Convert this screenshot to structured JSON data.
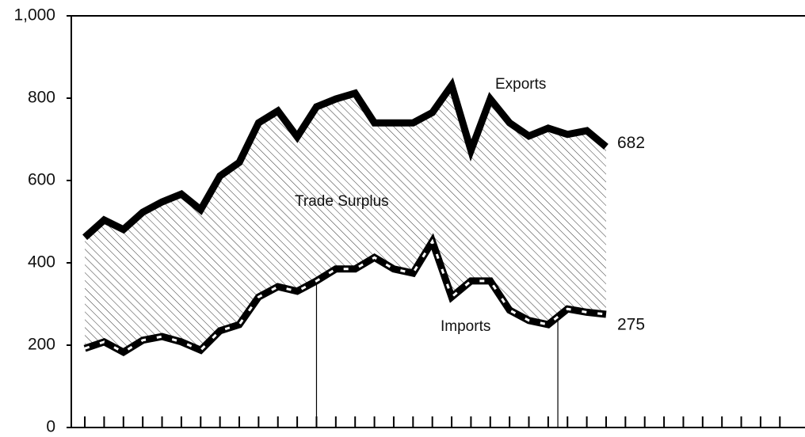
{
  "chart_data": {
    "type": "line",
    "x": [
      0,
      1,
      2,
      3,
      4,
      5,
      6,
      7,
      8,
      9,
      10,
      11,
      12,
      13,
      14,
      15,
      16,
      17,
      18,
      19,
      20,
      21,
      22,
      23,
      24,
      25,
      26,
      27
    ],
    "series": [
      {
        "name": "Exports",
        "color": "#000000",
        "values": [
          462,
          504,
          481,
          523,
          548,
          567,
          529,
          611,
          644,
          740,
          769,
          706,
          779,
          798,
          812,
          740,
          740,
          740,
          765,
          831,
          673,
          798,
          740,
          708,
          727,
          712,
          721,
          682
        ]
      },
      {
        "name": "Imports",
        "color": "#000000",
        "values": [
          192,
          208,
          183,
          212,
          221,
          208,
          188,
          235,
          250,
          317,
          342,
          331,
          356,
          385,
          385,
          413,
          385,
          375,
          452,
          317,
          356,
          356,
          285,
          260,
          250,
          288,
          280,
          275
        ]
      }
    ],
    "annotations": [
      "Trade Surplus"
    ],
    "vlines": [
      12,
      24.5
    ],
    "xlim": [
      -0.7,
      36.85
    ],
    "xticks": [
      0,
      1,
      2,
      3,
      4,
      5,
      6,
      7,
      8,
      9,
      10,
      11,
      12,
      13,
      14,
      15,
      16,
      17,
      18,
      19,
      20,
      21,
      22,
      23,
      24,
      25,
      26,
      27,
      28,
      29,
      30,
      31,
      32,
      33,
      34,
      35,
      36
    ],
    "ylim": [
      0,
      1000
    ],
    "yticks": [
      0,
      200,
      400,
      600,
      {
        "value": 1000,
        "label": "1,000"
      },
      800
    ]
  }
}
